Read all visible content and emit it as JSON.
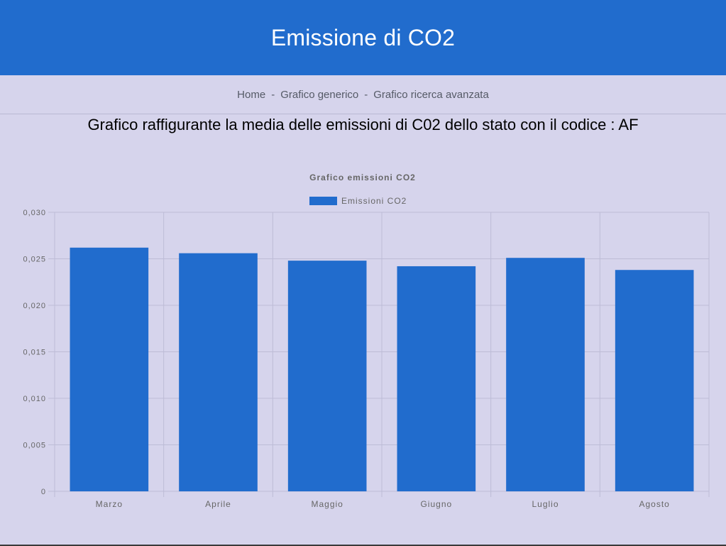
{
  "header": {
    "title": "Emissione di CO2"
  },
  "nav": {
    "items": [
      "Home",
      "Grafico generico",
      "Grafico ricerca avanzata"
    ],
    "separator": "-"
  },
  "subtitle": "Grafico raffigurante la media delle emissioni di C02 dello stato con il codice : AF",
  "chart_data": {
    "type": "bar",
    "title": "Grafico emissioni CO2",
    "categories": [
      "Marzo",
      "Aprile",
      "Maggio",
      "Giugno",
      "Luglio",
      "Agosto"
    ],
    "series": [
      {
        "name": "Emissioni CO2",
        "values": [
          0.0262,
          0.0256,
          0.0248,
          0.0242,
          0.0251,
          0.0238
        ],
        "color": "#216ccd"
      }
    ],
    "ylim": [
      0,
      0.03
    ],
    "yticks": [
      0,
      0.005,
      0.01,
      0.015,
      0.02,
      0.025,
      0.03
    ],
    "ytick_labels": [
      "0",
      "0,005",
      "0,010",
      "0,015",
      "0,020",
      "0,025",
      "0,030"
    ],
    "grid": true,
    "legend_position": "top"
  },
  "colors": {
    "header_bg": "#216ccd",
    "page_bg": "#d6d4ec",
    "bar": "#216ccd",
    "grid": "#bdbcd6"
  }
}
